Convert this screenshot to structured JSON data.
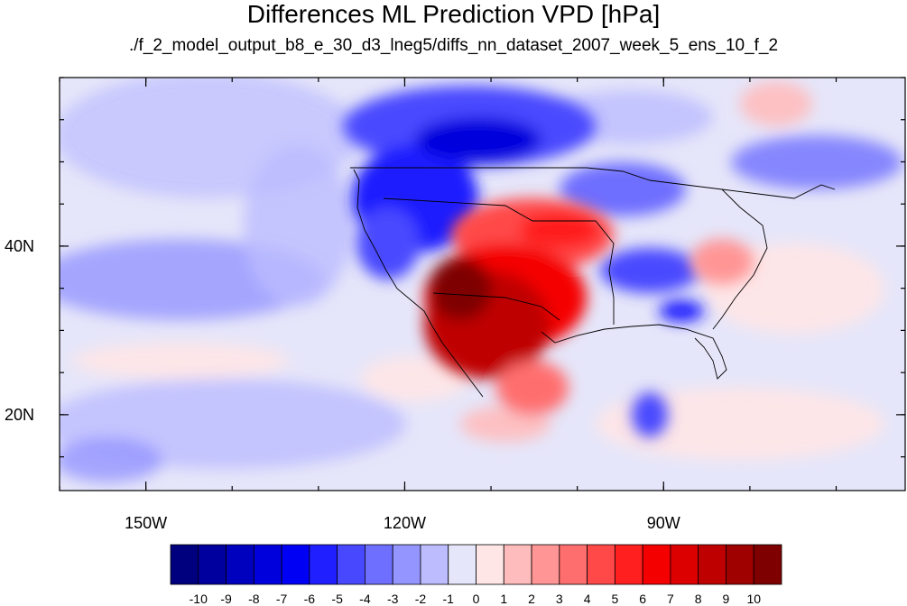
{
  "title": "Differences ML Prediction VPD [hPa]",
  "subtitle": "./f_2_model_output_b8_e_30_d3_lneg5/diffs_nn_dataset_2007_week_5_ens_10_f_2",
  "map": {
    "lon_range": [
      -160,
      -62
    ],
    "lat_range": [
      11,
      60
    ],
    "lon_ticks": [
      {
        "value": -150,
        "label": "150W"
      },
      {
        "value": -120,
        "label": "120W"
      },
      {
        "value": -90,
        "label": "90W"
      }
    ],
    "lat_ticks": [
      {
        "value": 40,
        "label": "40N"
      },
      {
        "value": 20,
        "label": "20N"
      }
    ]
  },
  "colorbar": {
    "labels": [
      "-10",
      "-9",
      "-8",
      "-7",
      "-6",
      "-5",
      "-4",
      "-3",
      "-2",
      "-1",
      "0",
      "1",
      "2",
      "3",
      "4",
      "5",
      "6",
      "7",
      "8",
      "9",
      "10"
    ],
    "colors": [
      "#00007f",
      "#00009f",
      "#0000bf",
      "#0000dd",
      "#0000f5",
      "#1f1fff",
      "#4848ff",
      "#6e6eff",
      "#9595ff",
      "#bcbcff",
      "#e6e6fa",
      "#ffe6e6",
      "#ffbcbc",
      "#ff9595",
      "#ff6e6e",
      "#ff4848",
      "#ff1f1f",
      "#f50000",
      "#dd0000",
      "#bf0000",
      "#9f0000",
      "#7f0000"
    ]
  }
}
